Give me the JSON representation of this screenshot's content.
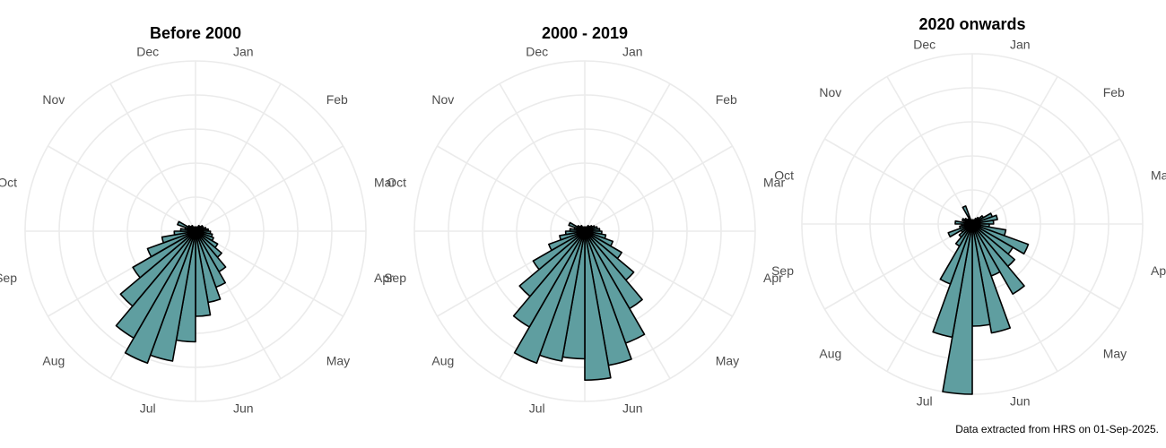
{
  "chart_data": [
    {
      "type": "polar-bar",
      "title": "Before 2000",
      "angle_labels": [
        "Jan",
        "Feb",
        "Mar",
        "Apr",
        "May",
        "Jun",
        "Jul",
        "Aug",
        "Sep",
        "Oct",
        "Nov",
        "Dec"
      ],
      "values": [
        2,
        2,
        2,
        3,
        3,
        4,
        4,
        5,
        6,
        7,
        8,
        9,
        12,
        16,
        22,
        28,
        34,
        40,
        52,
        62,
        66,
        58,
        46,
        34,
        24,
        16,
        10,
        7,
        5,
        9,
        4,
        3,
        3,
        2,
        2,
        2
      ],
      "rmax": 80,
      "grid": true,
      "fill": "#5f9ea0",
      "edge": "#000000"
    },
    {
      "type": "polar-bar",
      "title": "2000 - 2019",
      "angle_labels": [
        "Jan",
        "Feb",
        "Mar",
        "Apr",
        "May",
        "Jun",
        "Jul",
        "Aug",
        "Sep",
        "Oct",
        "Nov",
        "Dec"
      ],
      "values": [
        2,
        2,
        2,
        3,
        3,
        4,
        5,
        6,
        7,
        8,
        10,
        14,
        20,
        30,
        42,
        56,
        64,
        70,
        60,
        62,
        66,
        52,
        40,
        28,
        18,
        12,
        9,
        7,
        5,
        8,
        4,
        3,
        3,
        2,
        2,
        2
      ],
      "rmax": 80,
      "grid": true,
      "fill": "#5f9ea0",
      "edge": "#000000"
    },
    {
      "type": "polar-bar",
      "title": "2020 onwards",
      "angle_labels": [
        "Jan",
        "Feb",
        "Mar",
        "Apr",
        "May",
        "Jun",
        "Jul",
        "Aug",
        "Sep",
        "Oct",
        "Nov",
        "Dec"
      ],
      "values": [
        2,
        2,
        2,
        3,
        4,
        6,
        10,
        12,
        10,
        8,
        16,
        28,
        22,
        26,
        38,
        26,
        52,
        48,
        80,
        54,
        30,
        12,
        8,
        6,
        12,
        6,
        5,
        8,
        3,
        5,
        4,
        3,
        2,
        9,
        2,
        2
      ],
      "rmax": 80,
      "grid": true,
      "fill": "#5f9ea0",
      "edge": "#000000"
    }
  ],
  "caption": "Data extracted from HRS on 01-Sep-2025."
}
